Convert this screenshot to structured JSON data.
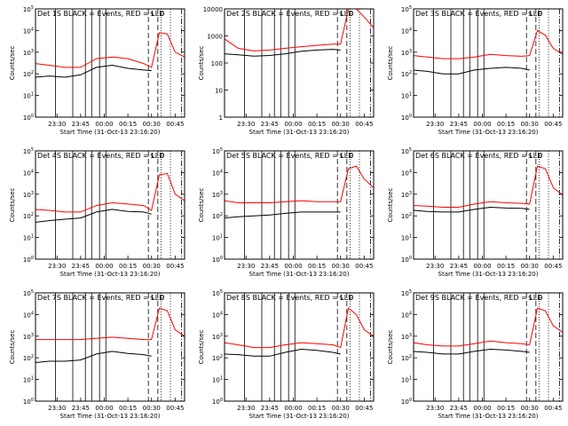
{
  "figure": {
    "xlabel": "Start Time (31-Oct-13 23:16:20)",
    "ylabel": "Counts/sec",
    "x_tick_labels": [
      "23:30",
      "23:45",
      "00:00",
      "00:15",
      "00:30",
      "00:45"
    ],
    "solid_vline_times": [
      "23:29",
      "23:40",
      "23:48",
      "23:52",
      "23:57",
      "00:01"
    ],
    "dashed_vline_times": [
      "00:28",
      "00:34"
    ],
    "dotted_vline_times": [
      "00:36",
      "00:42"
    ],
    "dashdot_vline_times": [
      "00:49"
    ],
    "vline_letters": [
      "S",
      "E"
    ],
    "colors": {
      "events": "#000000",
      "lld": "#ff0000"
    }
  },
  "chart_data": [
    {
      "type": "line",
      "title": "Det 1S BLACK = Events, RED = LLD",
      "x": [
        "23:16",
        "23:25",
        "23:35",
        "23:45",
        "23:55",
        "00:05",
        "00:15",
        "00:25",
        "00:30",
        "00:35",
        "00:40",
        "00:45",
        "00:51"
      ],
      "series": [
        {
          "values": [
            70,
            80,
            70,
            90,
            200,
            250,
            180,
            150,
            140,
            null,
            null,
            null,
            null
          ]
        },
        {
          "values": [
            300,
            250,
            200,
            200,
            500,
            600,
            500,
            300,
            200,
            8000,
            7000,
            1000,
            600
          ]
        }
      ],
      "ylim": [
        1,
        100000
      ],
      "yscale": "log",
      "y_tick_labels": [
        "10^0",
        "10^1",
        "10^2",
        "10^3",
        "10^4",
        "10^5"
      ]
    },
    {
      "type": "line",
      "title": "Det 2S BLACK = Events, RED = LLD",
      "x": [
        "23:16",
        "23:25",
        "23:35",
        "23:45",
        "23:55",
        "00:05",
        "00:15",
        "00:25",
        "00:30",
        "00:35",
        "00:40",
        "00:45",
        "00:51"
      ],
      "series": [
        {
          "values": [
            220,
            200,
            180,
            190,
            220,
            270,
            300,
            320,
            300,
            null,
            null,
            null,
            null
          ]
        },
        {
          "values": [
            800,
            350,
            280,
            300,
            350,
            400,
            450,
            500,
            500,
            10000,
            10000,
            5000,
            2000
          ]
        }
      ],
      "ylim": [
        1,
        10000
      ],
      "yscale": "log",
      "y_tick_labels": [
        "1",
        "10",
        "100",
        "1000",
        "10000"
      ]
    },
    {
      "type": "line",
      "title": "Det 3S BLACK = Events, RED = LLD",
      "x": [
        "23:16",
        "23:25",
        "23:35",
        "23:45",
        "23:55",
        "00:05",
        "00:15",
        "00:25",
        "00:30",
        "00:35",
        "00:40",
        "00:45",
        "00:51"
      ],
      "series": [
        {
          "values": [
            150,
            130,
            100,
            100,
            150,
            180,
            200,
            180,
            150,
            null,
            null,
            null,
            null
          ]
        },
        {
          "values": [
            700,
            600,
            500,
            500,
            600,
            800,
            700,
            650,
            700,
            10000,
            6000,
            1500,
            800
          ]
        }
      ],
      "ylim": [
        1,
        100000
      ],
      "yscale": "log",
      "y_tick_labels": [
        "10^0",
        "10^1",
        "10^2",
        "10^3",
        "10^4",
        "10^5"
      ]
    },
    {
      "type": "line",
      "title": "Det 4S BLACK = Events, RED = LLD",
      "x": [
        "23:16",
        "23:25",
        "23:35",
        "23:45",
        "23:55",
        "00:05",
        "00:15",
        "00:25",
        "00:30",
        "00:35",
        "00:40",
        "00:45",
        "00:51"
      ],
      "series": [
        {
          "values": [
            50,
            60,
            70,
            80,
            150,
            200,
            160,
            150,
            120,
            null,
            null,
            null,
            null
          ]
        },
        {
          "values": [
            200,
            180,
            150,
            150,
            300,
            400,
            350,
            300,
            180,
            8000,
            9000,
            1000,
            500
          ]
        }
      ],
      "ylim": [
        1,
        100000
      ],
      "yscale": "log",
      "y_tick_labels": [
        "10^0",
        "10^1",
        "10^2",
        "10^3",
        "10^4",
        "10^5"
      ]
    },
    {
      "type": "line",
      "title": "Det 5S BLACK = Events, RED = LLD",
      "x": [
        "23:16",
        "23:25",
        "23:35",
        "23:45",
        "23:55",
        "00:05",
        "00:15",
        "00:25",
        "00:30",
        "00:35",
        "00:40",
        "00:45",
        "00:51"
      ],
      "series": [
        {
          "values": [
            80,
            90,
            100,
            110,
            130,
            150,
            150,
            150,
            150,
            null,
            null,
            null,
            null
          ]
        },
        {
          "values": [
            500,
            400,
            400,
            400,
            450,
            500,
            450,
            450,
            450,
            15000,
            20000,
            5000,
            2000
          ]
        }
      ],
      "ylim": [
        1,
        100000
      ],
      "yscale": "log",
      "y_tick_labels": [
        "10^0",
        "10^1",
        "10^2",
        "10^3",
        "10^4",
        "10^5"
      ]
    },
    {
      "type": "line",
      "title": "Det 6S BLACK = Events, RED = LLD",
      "x": [
        "23:16",
        "23:25",
        "23:35",
        "23:45",
        "23:55",
        "00:05",
        "00:15",
        "00:25",
        "00:30",
        "00:35",
        "00:40",
        "00:45",
        "00:51"
      ],
      "series": [
        {
          "values": [
            180,
            160,
            150,
            150,
            200,
            250,
            230,
            220,
            200,
            null,
            null,
            null,
            null
          ]
        },
        {
          "values": [
            300,
            280,
            250,
            250,
            350,
            450,
            400,
            380,
            350,
            20000,
            15000,
            2000,
            900
          ]
        }
      ],
      "ylim": [
        1,
        100000
      ],
      "yscale": "log",
      "y_tick_labels": [
        "10^0",
        "10^1",
        "10^2",
        "10^3",
        "10^4",
        "10^5"
      ]
    },
    {
      "type": "line",
      "title": "Det 7S BLACK = Events, RED = LLD",
      "x": [
        "23:16",
        "23:25",
        "23:35",
        "23:45",
        "23:55",
        "00:05",
        "00:15",
        "00:25",
        "00:30",
        "00:35",
        "00:40",
        "00:45",
        "00:51"
      ],
      "series": [
        {
          "values": [
            60,
            70,
            70,
            80,
            150,
            200,
            160,
            140,
            120,
            null,
            null,
            null,
            null
          ]
        },
        {
          "values": [
            700,
            700,
            700,
            700,
            800,
            900,
            800,
            700,
            700,
            20000,
            15000,
            2000,
            1000
          ]
        }
      ],
      "ylim": [
        1,
        100000
      ],
      "yscale": "log",
      "y_tick_labels": [
        "10^0",
        "10^1",
        "10^2",
        "10^3",
        "10^4",
        "10^5"
      ]
    },
    {
      "type": "line",
      "title": "Det 8S BLACK = Events, RED = LLD",
      "x": [
        "23:16",
        "23:25",
        "23:35",
        "23:45",
        "23:55",
        "00:05",
        "00:15",
        "00:25",
        "00:30",
        "00:35",
        "00:40",
        "00:45",
        "00:51"
      ],
      "series": [
        {
          "values": [
            150,
            140,
            120,
            120,
            180,
            250,
            220,
            180,
            150,
            null,
            null,
            null,
            null
          ]
        },
        {
          "values": [
            500,
            400,
            300,
            300,
            400,
            500,
            450,
            400,
            300,
            20000,
            10000,
            2000,
            1000
          ]
        }
      ],
      "ylim": [
        1,
        100000
      ],
      "yscale": "log",
      "y_tick_labels": [
        "10^0",
        "10^1",
        "10^2",
        "10^3",
        "10^4",
        "10^5"
      ]
    },
    {
      "type": "line",
      "title": "Det 9S BLACK = Events, RED = LLD",
      "x": [
        "23:16",
        "23:25",
        "23:35",
        "23:45",
        "23:55",
        "00:05",
        "00:15",
        "00:25",
        "00:30",
        "00:35",
        "00:40",
        "00:45",
        "00:51"
      ],
      "series": [
        {
          "values": [
            200,
            180,
            150,
            150,
            200,
            250,
            230,
            200,
            180,
            null,
            null,
            null,
            null
          ]
        },
        {
          "values": [
            500,
            400,
            350,
            350,
            450,
            600,
            500,
            450,
            400,
            20000,
            15000,
            3000,
            1500
          ]
        }
      ],
      "ylim": [
        1,
        100000
      ],
      "yscale": "log",
      "y_tick_labels": [
        "10^0",
        "10^1",
        "10^2",
        "10^3",
        "10^4",
        "10^5"
      ]
    }
  ]
}
